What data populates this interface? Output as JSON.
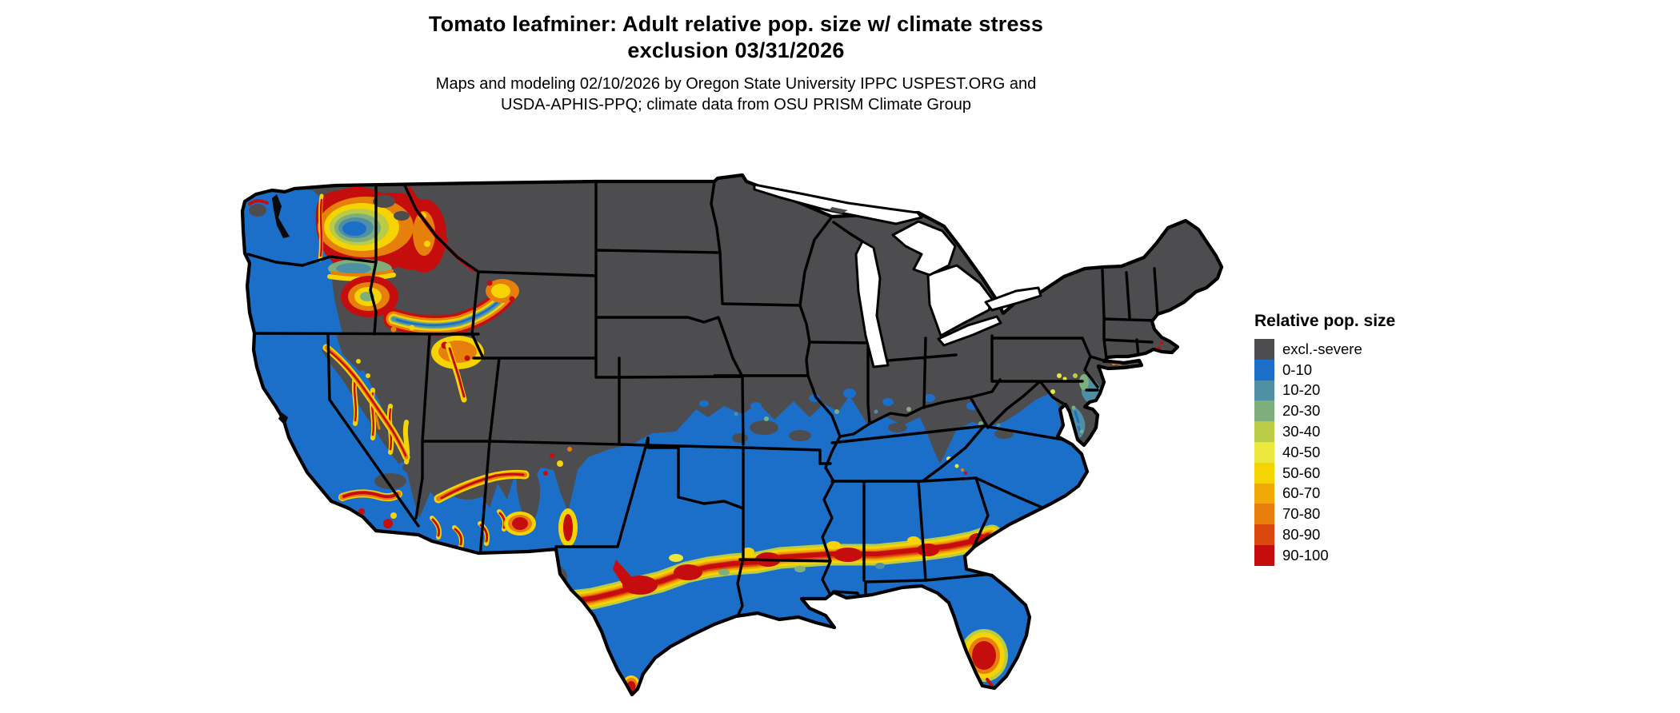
{
  "header": {
    "title_line1": "Tomato leafminer: Adult relative pop. size w/ climate stress",
    "title_line2": "exclusion 03/31/2026",
    "subtitle_line1": "Maps and modeling 02/10/2026 by Oregon State University IPPC USPEST.ORG and",
    "subtitle_line2": "USDA-APHIS-PPQ; climate data from OSU PRISM Climate Group"
  },
  "legend": {
    "title": "Relative pop. size",
    "items": [
      {
        "label": "excl.-severe",
        "color": "#4D4D50"
      },
      {
        "label": "0-10",
        "color": "#1B6FC9"
      },
      {
        "label": "10-20",
        "color": "#4E8FA4"
      },
      {
        "label": "20-30",
        "color": "#7EAE7C"
      },
      {
        "label": "30-40",
        "color": "#BACB45"
      },
      {
        "label": "40-50",
        "color": "#EBE73C"
      },
      {
        "label": "50-60",
        "color": "#F6D303"
      },
      {
        "label": "60-70",
        "color": "#F0A907"
      },
      {
        "label": "70-80",
        "color": "#E67F0B"
      },
      {
        "label": "80-90",
        "color": "#DA470F"
      },
      {
        "label": "90-100",
        "color": "#C60D0E"
      }
    ]
  },
  "palette": {
    "gray": "#4D4D50",
    "blue": "#1B6FC9",
    "teal": "#4E8FA4",
    "green": "#7EAE7C",
    "ygreen": "#BACB45",
    "yellow": "#EBE73C",
    "gold": "#F6D303",
    "amber": "#F0A907",
    "orange": "#E67F0B",
    "redor": "#DA470F",
    "red": "#C60D0E",
    "water": "#FFFFFF",
    "border": "#000000"
  },
  "map": {
    "area": "Contiguous United States",
    "excluded_category": "excl.-severe"
  }
}
